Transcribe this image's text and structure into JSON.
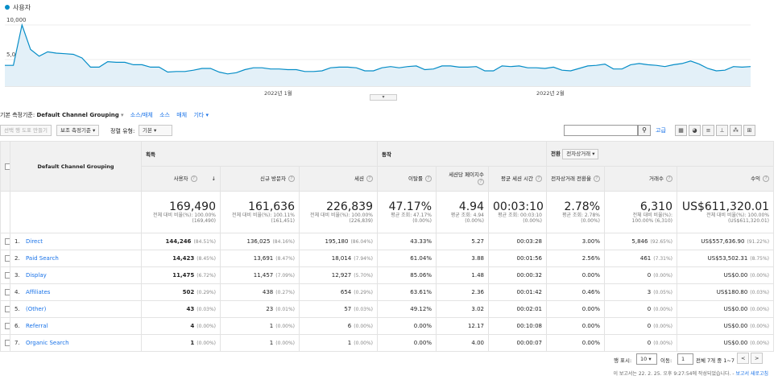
{
  "chart": {
    "legend_label": "사용자",
    "y_ticks": [
      "10,000",
      "5,000"
    ],
    "x_labels": [
      "2022년 1월",
      "2022년 2월"
    ],
    "accent": "#058dc7",
    "fill": "#e3f0f8",
    "values": [
      3400,
      3400,
      10000,
      6000,
      4900,
      5600,
      5400,
      5300,
      5200,
      4600,
      3100,
      3100,
      4000,
      3900,
      3900,
      3500,
      3500,
      3100,
      3100,
      2300,
      2400,
      2400,
      2600,
      2900,
      2900,
      2300,
      2000,
      2200,
      2700,
      3000,
      3000,
      2800,
      2800,
      2700,
      2700,
      2400,
      2400,
      2500,
      3000,
      3100,
      3100,
      3000,
      2500,
      2500,
      3000,
      3200,
      3000,
      3200,
      3300,
      2700,
      2800,
      3300,
      3300,
      3100,
      3100,
      3200,
      2500,
      2500,
      3300,
      3200,
      3300,
      3000,
      3000,
      2900,
      3100,
      2600,
      2500,
      2900,
      3300,
      3400,
      3600,
      2800,
      2800,
      3500,
      3700,
      3500,
      3400,
      3200,
      3500,
      3700,
      4100,
      3600,
      2900,
      2500,
      2600,
      3200,
      3100,
      3200
    ]
  },
  "dimension_bar": {
    "label": "기본 측정기준:",
    "active": "Default Channel Grouping",
    "links": [
      "소스/매체",
      "소스",
      "매체",
      "기타"
    ]
  },
  "toolbar": {
    "segment_btn": "선택 행 도표 만들기",
    "secondary_btn": "보조 측정기준",
    "sort_label": "정렬 유형:",
    "sort_value": "기본",
    "search_icon": "search-icon",
    "advanced": "고급"
  },
  "table": {
    "dimension_header": "Default Channel Grouping",
    "groups": [
      "획득",
      "동작",
      "전환"
    ],
    "conversion_select": "전자상거래",
    "columns": [
      "사용자",
      "신규 방문자",
      "세션",
      "이탈률",
      "세션당 페이지수",
      "평균 세션 시간",
      "전자상거래 전환율",
      "거래수",
      "수익"
    ],
    "totals": [
      {
        "value": "169,490",
        "sub1": "전체 대비 비율(%): 100.00%",
        "sub2": "(169,490)"
      },
      {
        "value": "161,636",
        "sub1": "전체 대비 비율(%): 100.11%",
        "sub2": "(161,451)"
      },
      {
        "value": "226,839",
        "sub1": "전체 대비 비율(%): 100.00%",
        "sub2": "(226,839)"
      },
      {
        "value": "47.17%",
        "sub1": "평균 조회: 47.17%",
        "sub2": "(0.00%)"
      },
      {
        "value": "4.94",
        "sub1": "평균 조회: 4.94",
        "sub2": "(0.00%)"
      },
      {
        "value": "00:03:10",
        "sub1": "평균 조회: 00:03:10",
        "sub2": "(0.00%)"
      },
      {
        "value": "2.78%",
        "sub1": "평균 조회: 2.78%",
        "sub2": "(0.00%)"
      },
      {
        "value": "6,310",
        "sub1": "전체 대비 비율(%):",
        "sub2": "100.00% (6,310)"
      },
      {
        "value": "US$611,320.01",
        "sub1": "전체 대비 비율(%): 100.00%",
        "sub2": "(US$611,320.01)"
      }
    ],
    "rows": [
      {
        "idx": "1.",
        "name": "Direct",
        "users": "144,246",
        "users_pct": "(84.51%)",
        "new": "136,025",
        "new_pct": "(84.16%)",
        "sessions": "195,180",
        "sessions_pct": "(86.04%)",
        "bounce": "43.33%",
        "pps": "5.27",
        "dur": "00:03:28",
        "conv": "3.00%",
        "tx": "5,846",
        "tx_pct": "(92.65%)",
        "rev": "US$557,636.90",
        "rev_pct": "(91.22%)"
      },
      {
        "idx": "2.",
        "name": "Paid Search",
        "users": "14,423",
        "users_pct": "(8.45%)",
        "new": "13,691",
        "new_pct": "(8.47%)",
        "sessions": "18,014",
        "sessions_pct": "(7.94%)",
        "bounce": "61.04%",
        "pps": "3.88",
        "dur": "00:01:56",
        "conv": "2.56%",
        "tx": "461",
        "tx_pct": "(7.31%)",
        "rev": "US$53,502.31",
        "rev_pct": "(8.75%)"
      },
      {
        "idx": "3.",
        "name": "Display",
        "users": "11,475",
        "users_pct": "(6.72%)",
        "new": "11,457",
        "new_pct": "(7.09%)",
        "sessions": "12,927",
        "sessions_pct": "(5.70%)",
        "bounce": "85.06%",
        "pps": "1.48",
        "dur": "00:00:32",
        "conv": "0.00%",
        "tx": "0",
        "tx_pct": "(0.00%)",
        "rev": "US$0.00",
        "rev_pct": "(0.00%)"
      },
      {
        "idx": "4.",
        "name": "Affiliates",
        "users": "502",
        "users_pct": "(0.29%)",
        "new": "438",
        "new_pct": "(0.27%)",
        "sessions": "654",
        "sessions_pct": "(0.29%)",
        "bounce": "63.61%",
        "pps": "2.36",
        "dur": "00:01:42",
        "conv": "0.46%",
        "tx": "3",
        "tx_pct": "(0.05%)",
        "rev": "US$180.80",
        "rev_pct": "(0.03%)"
      },
      {
        "idx": "5.",
        "name": "(Other)",
        "users": "43",
        "users_pct": "(0.03%)",
        "new": "23",
        "new_pct": "(0.01%)",
        "sessions": "57",
        "sessions_pct": "(0.03%)",
        "bounce": "49.12%",
        "pps": "3.02",
        "dur": "00:02:01",
        "conv": "0.00%",
        "tx": "0",
        "tx_pct": "(0.00%)",
        "rev": "US$0.00",
        "rev_pct": "(0.00%)"
      },
      {
        "idx": "6.",
        "name": "Referral",
        "users": "4",
        "users_pct": "(0.00%)",
        "new": "1",
        "new_pct": "(0.00%)",
        "sessions": "6",
        "sessions_pct": "(0.00%)",
        "bounce": "0.00%",
        "pps": "12.17",
        "dur": "00:10:08",
        "conv": "0.00%",
        "tx": "0",
        "tx_pct": "(0.00%)",
        "rev": "US$0.00",
        "rev_pct": "(0.00%)"
      },
      {
        "idx": "7.",
        "name": "Organic Search",
        "users": "1",
        "users_pct": "(0.00%)",
        "new": "1",
        "new_pct": "(0.00%)",
        "sessions": "1",
        "sessions_pct": "(0.00%)",
        "bounce": "0.00%",
        "pps": "4.00",
        "dur": "00:00:07",
        "conv": "0.00%",
        "tx": "0",
        "tx_pct": "(0.00%)",
        "rev": "US$0.00",
        "rev_pct": "(0.00%)"
      }
    ]
  },
  "pagination": {
    "rows_label": "행 표시:",
    "rows_value": "10",
    "goto_label": "이동:",
    "goto_value": "1",
    "range": "전체 7개 중 1~7",
    "prev": "<",
    "next": ">"
  },
  "meta": {
    "created": "이 보고서는 22. 2. 25. 오후 9:27:54에 작성되었습니다. -",
    "refresh": "보고서 새로고침"
  }
}
